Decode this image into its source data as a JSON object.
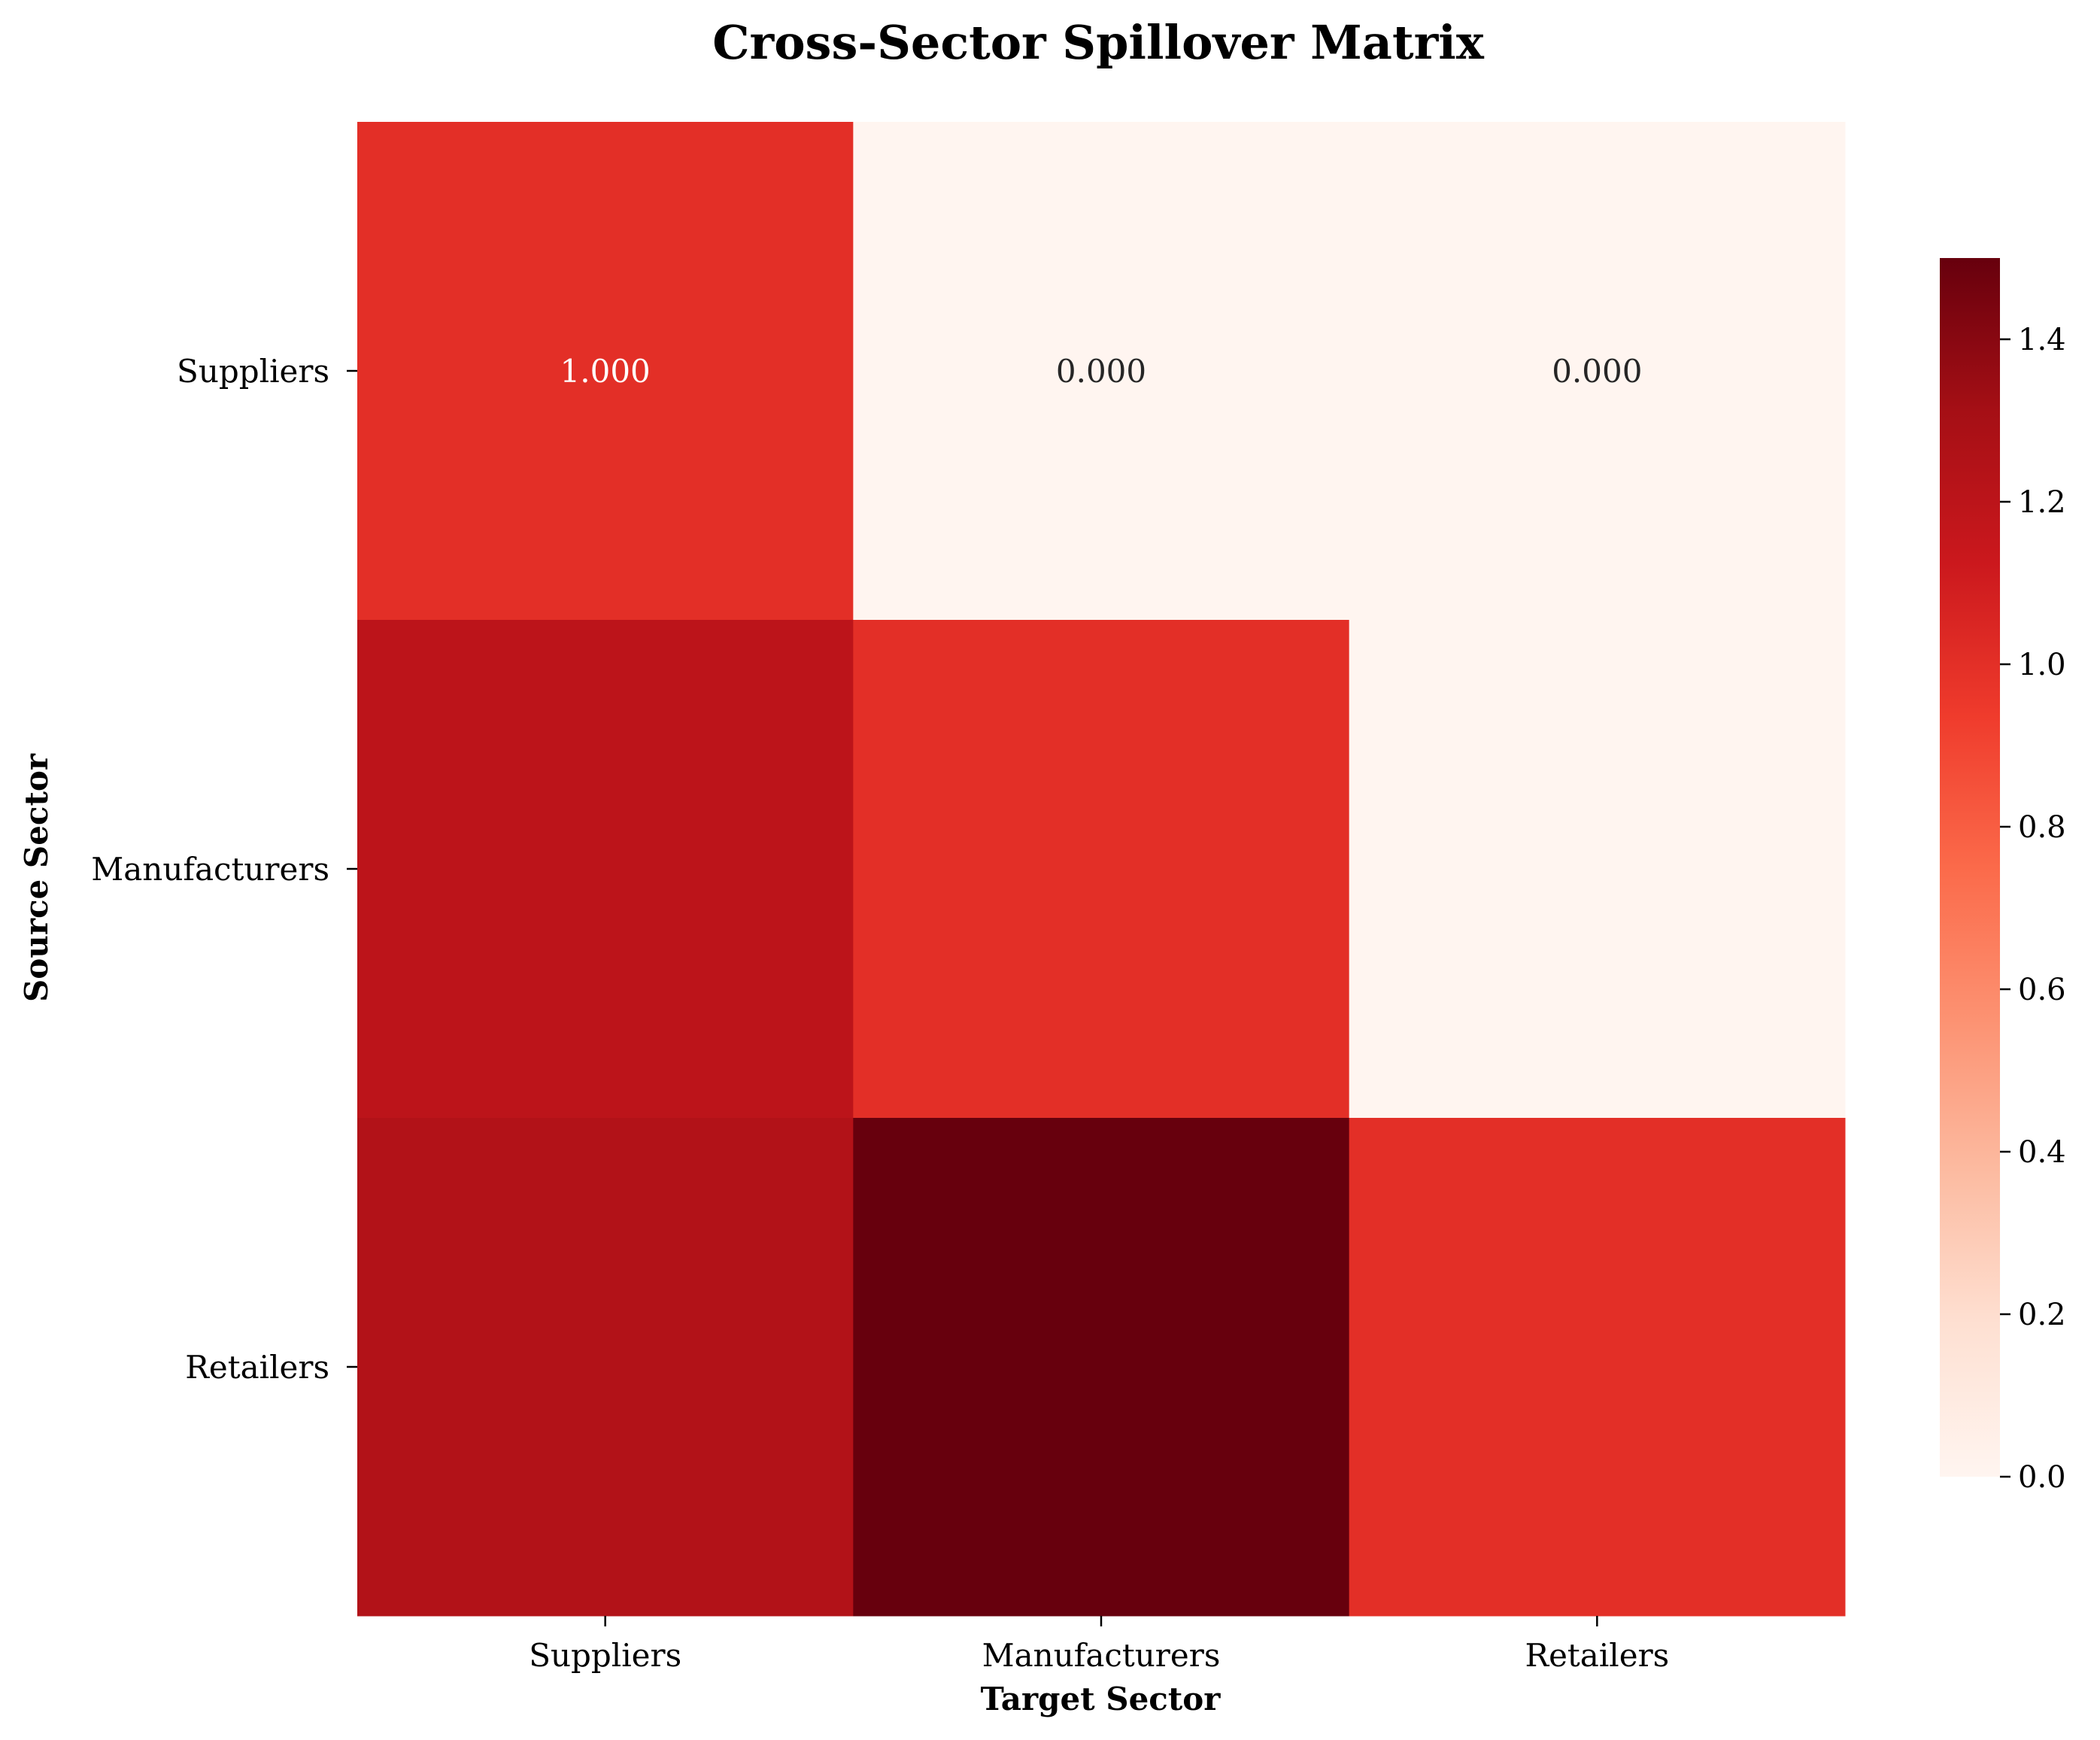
{
  "chart_data": {
    "type": "heatmap",
    "title": "Cross-Sector Spillover Matrix",
    "xlabel": "Target Sector",
    "ylabel": "Source Sector",
    "x_categories": [
      "Suppliers",
      "Manufacturers",
      "Retailers"
    ],
    "y_categories": [
      "Suppliers",
      "Manufacturers",
      "Retailers"
    ],
    "values": [
      [
        1.0,
        0.0,
        0.0
      ],
      [
        1.2,
        1.0,
        0.0
      ],
      [
        1.25,
        1.5,
        1.0
      ]
    ],
    "cell_labels": [
      [
        "1.000",
        "0.000",
        "0.000"
      ],
      [
        "",
        "",
        ""
      ],
      [
        "",
        "",
        ""
      ]
    ],
    "colorbar": {
      "range": [
        0,
        1.5
      ],
      "ticks": [
        0.0,
        0.2,
        0.4,
        0.6,
        0.8,
        1.0,
        1.2,
        1.4
      ],
      "tick_labels": [
        "0.0",
        "0.2",
        "0.4",
        "0.6",
        "0.8",
        "1.0",
        "1.2",
        "1.4"
      ]
    },
    "colormap": "Reds",
    "colormap_stops": [
      "#fff5f0",
      "#fee0d2",
      "#fcbba1",
      "#fc9272",
      "#fb6a4a",
      "#ef3b2c",
      "#cb181d",
      "#a50f15",
      "#67000d"
    ],
    "grid": false,
    "legend": "colorbar-right"
  }
}
